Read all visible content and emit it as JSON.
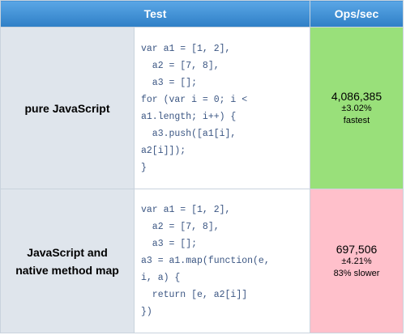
{
  "table": {
    "header": [
      "Test",
      "Ops/sec"
    ],
    "rows": [
      {
        "name": "pure JavaScript",
        "code": [
          "var a1 = [1, 2],",
          "  a2 = [7, 8],",
          "  a3 = [];",
          "for (var i = 0; i <",
          "a1.length; i++) {",
          "  a3.push([a1[i],",
          "a2[i]]);",
          "}"
        ],
        "ops": "4,086,385",
        "error": "±3.02%",
        "rank": "fastest",
        "color": "#99e07a"
      },
      {
        "name": "JavaScript and native method map",
        "code": [
          "var a1 = [1, 2],",
          "  a2 = [7, 8],",
          "  a3 = [];",
          "a3 = a1.map(function(e,",
          "i, a) {",
          "  return [e, a2[i]]",
          "})"
        ],
        "ops": "697,506",
        "error": "±4.21%",
        "rank": "83% slower",
        "color": "#ffc0cb"
      }
    ]
  }
}
